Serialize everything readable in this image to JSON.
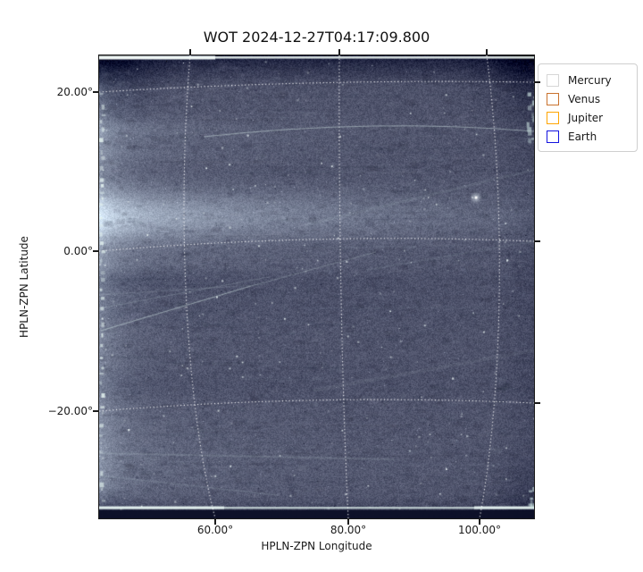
{
  "figure": {
    "title": "WOT 2024-12-27T04:17:09.800",
    "x_axis": {
      "label": "HPLN-ZPN Longitude",
      "tick_labels": [
        "60.00°",
        "80.00°",
        "100.00°"
      ]
    },
    "y_axis": {
      "label": "HPLN-ZPN Latitude",
      "tick_labels": [
        "20.00°",
        "0.00°",
        "−20.00°"
      ]
    },
    "legend": {
      "items": [
        {
          "label": "Mercury",
          "color": "#d6d6d6"
        },
        {
          "label": "Venus",
          "color": "#c9722e"
        },
        {
          "label": "Jupiter",
          "color": "#ffa500"
        },
        {
          "label": "Earth",
          "color": "#1414e0"
        }
      ]
    }
  },
  "chart_data": {
    "type": "heatmap",
    "title": "WOT 2024-12-27T04:17:09.800",
    "xlabel": "HPLN-ZPN Longitude",
    "ylabel": "HPLN-ZPN Latitude",
    "x_tick_values_deg": [
      60,
      80,
      100
    ],
    "y_tick_values_deg": [
      20,
      0,
      -20
    ],
    "xlim_deg": [
      42.5,
      108.3
    ],
    "ylim_deg": [
      -33.5,
      24.7
    ],
    "grid": {
      "shown": true,
      "style": "dotted",
      "color": "#ffffff"
    },
    "legend_entries": [
      "Mercury",
      "Venus",
      "Jupiter",
      "Earth"
    ],
    "image_palette": {
      "background": "#4d516a",
      "bright_band": "#a9c4c4",
      "edge_line": "#eef6f3",
      "dark_frame": "#10142a",
      "star": "#ffffff"
    },
    "image_description": "White-light heliospheric imager frame: mottled slate-blue field with bright streamer bands on the left, a thin streak crossing near 15° latitude, field stars, bright top/bottom edge rows and dark vignetted rounded corners."
  }
}
